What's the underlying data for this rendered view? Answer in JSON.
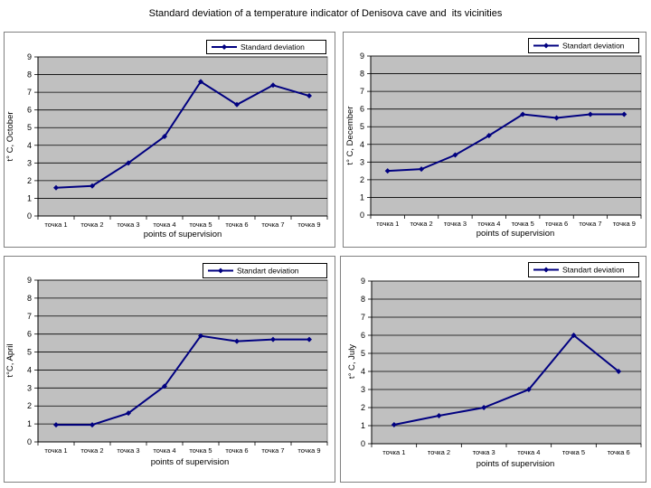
{
  "page": {
    "title": "Standard deviation of a temperature indicator of Denisova cave and  its vicinities"
  },
  "colors": {
    "plot_bg": "#c0c0c0",
    "series": "#000080",
    "grid": "#000000",
    "frame": "#808080"
  },
  "chart_data": [
    {
      "type": "line",
      "ylabel": "t° C, October",
      "xlabel": "points of supervision",
      "categories": [
        "точка 1",
        "точка 2",
        "точка 3",
        "точка 4",
        "точка 5",
        "точка 6",
        "точка 7",
        "точка 9"
      ],
      "series": [
        {
          "name": "Standard deviation",
          "values": [
            1.6,
            1.7,
            3.0,
            4.5,
            7.6,
            6.3,
            7.4,
            6.8
          ]
        }
      ],
      "ylim": [
        0,
        9
      ],
      "yticks": [
        "0",
        "1",
        "2",
        "3",
        "4",
        "5",
        "6",
        "7",
        "8",
        "9"
      ],
      "grid": true,
      "legend": "top-right"
    },
    {
      "type": "line",
      "ylabel": "t° C, December",
      "xlabel": "points of supervision",
      "categories": [
        "точка 1",
        "точка 2",
        "точка 3",
        "точка 4",
        "точка 5",
        "точка 6",
        "точка 7",
        "точка 9"
      ],
      "series": [
        {
          "name": "Standart deviation",
          "values": [
            2.5,
            2.6,
            3.4,
            4.5,
            5.7,
            5.5,
            5.7,
            5.7
          ]
        }
      ],
      "ylim": [
        0,
        9
      ],
      "yticks": [
        "0",
        "1",
        "2",
        "3",
        "4",
        "5",
        "6",
        "7",
        "8",
        "9"
      ],
      "grid": true,
      "legend": "top-right"
    },
    {
      "type": "line",
      "ylabel": "t°C, April",
      "xlabel": "points of supervision",
      "categories": [
        "точка 1",
        "точка 2",
        "точка 3",
        "точка 4",
        "точка 5",
        "точка 6",
        "точка 7",
        "точка 9"
      ],
      "series": [
        {
          "name": "Standart deviation",
          "values": [
            0.95,
            0.95,
            1.6,
            3.1,
            5.9,
            5.6,
            5.7,
            5.7
          ]
        }
      ],
      "ylim": [
        0,
        9
      ],
      "yticks": [
        "0",
        "1",
        "2",
        "3",
        "4",
        "5",
        "6",
        "7",
        "8",
        "9"
      ],
      "grid": true,
      "legend": "top-right"
    },
    {
      "type": "line",
      "ylabel": "t° C, July",
      "xlabel": "points of supervision",
      "categories": [
        "точка 1",
        "точка 2",
        "точка 3",
        "точка 4",
        "точка 5",
        "точка 6"
      ],
      "series": [
        {
          "name": "Standart deviation",
          "values": [
            1.05,
            1.55,
            2.0,
            3.0,
            6.0,
            4.0
          ]
        }
      ],
      "ylim": [
        0,
        9
      ],
      "yticks": [
        "0",
        "1",
        "2",
        "3",
        "4",
        "5",
        "6",
        "7",
        "8",
        "9"
      ],
      "grid": true,
      "legend": "top-right"
    }
  ]
}
